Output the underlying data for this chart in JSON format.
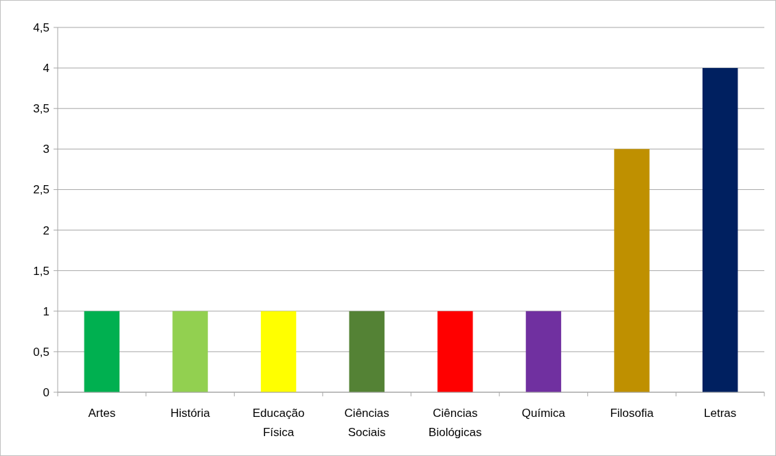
{
  "chart_data": {
    "type": "bar",
    "categories": [
      "Artes",
      "História",
      "Educação Física",
      "Ciências Sociais",
      "Ciências Biológicas",
      "Química",
      "Filosofia",
      "Letras"
    ],
    "values": [
      1,
      1,
      1,
      1,
      1,
      1,
      3,
      4
    ],
    "colors": [
      "#00b050",
      "#92d050",
      "#ffff00",
      "#548235",
      "#ff0000",
      "#7030a0",
      "#bf9000",
      "#002060"
    ],
    "ylim": [
      0,
      4.5
    ],
    "yticks": [
      {
        "value": 0,
        "label": "0"
      },
      {
        "value": 0.5,
        "label": "0,5"
      },
      {
        "value": 1,
        "label": "1"
      },
      {
        "value": 1.5,
        "label": "1,5"
      },
      {
        "value": 2,
        "label": "2"
      },
      {
        "value": 2.5,
        "label": "2,5"
      },
      {
        "value": 3,
        "label": "3"
      },
      {
        "value": 3.5,
        "label": "3,5"
      },
      {
        "value": 4,
        "label": "4"
      },
      {
        "value": 4.5,
        "label": "4,5"
      }
    ],
    "grid": "y"
  }
}
